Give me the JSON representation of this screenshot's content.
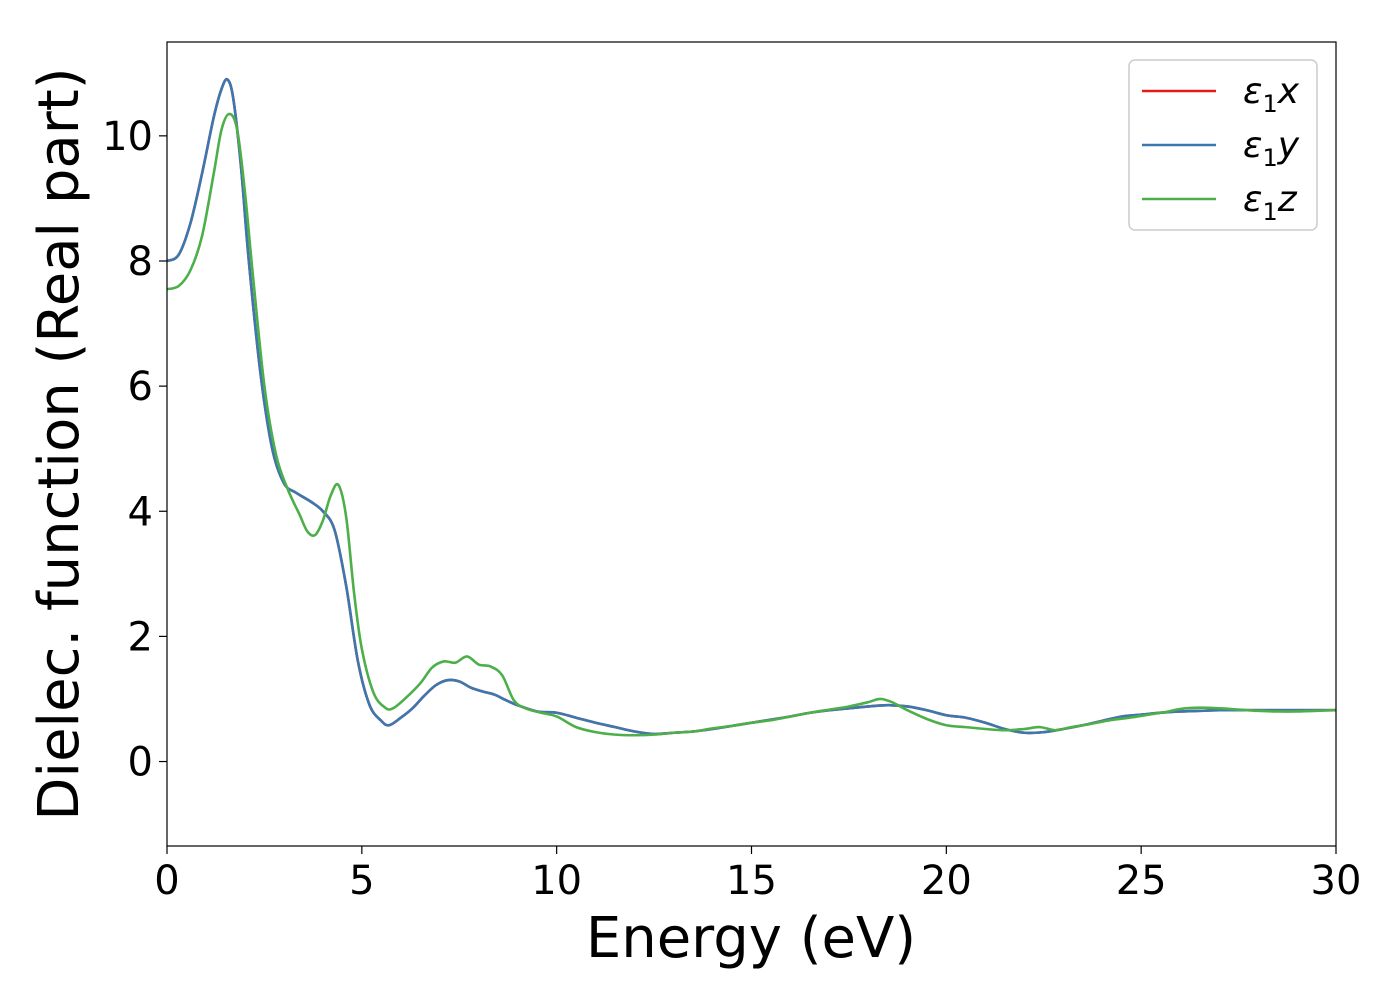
{
  "chart_data": {
    "type": "line",
    "xlabel": "Energy (eV)",
    "ylabel": "Dielec. function (Real part)",
    "xlim": [
      0,
      30
    ],
    "ylim": [
      -1.35,
      11.5
    ],
    "xticks": [
      "0",
      "5",
      "10",
      "15",
      "20",
      "25",
      "30"
    ],
    "xtick_values": [
      0,
      5,
      10,
      15,
      20,
      25,
      30
    ],
    "yticks": [
      "0",
      "2",
      "4",
      "6",
      "8",
      "10"
    ],
    "ytick_values": [
      0,
      2,
      4,
      6,
      8,
      10
    ],
    "grid": false,
    "legend_position": "top-right",
    "series": [
      {
        "name": "ε1x",
        "sym": "ε",
        "sub": "1",
        "var": "x",
        "color": "#e41a1c",
        "x": [
          0,
          0.3,
          0.6,
          0.9,
          1.2,
          1.4,
          1.55,
          1.7,
          1.9,
          2.1,
          2.4,
          2.7,
          3.0,
          3.3,
          3.7,
          4.0,
          4.3,
          4.6,
          4.9,
          5.2,
          5.5,
          5.7,
          6.0,
          6.3,
          6.6,
          6.9,
          7.2,
          7.5,
          7.8,
          8.1,
          8.4,
          8.7,
          9.0,
          9.5,
          10.0,
          10.5,
          11.0,
          11.5,
          12.0,
          12.5,
          13.0,
          13.5,
          14.0,
          14.5,
          15.0,
          15.5,
          16.0,
          16.5,
          17.0,
          17.5,
          18.0,
          18.5,
          19.0,
          19.5,
          20.0,
          20.5,
          21.0,
          21.5,
          22.0,
          22.5,
          23.0,
          23.5,
          24.0,
          24.5,
          25.0,
          25.5,
          26.0,
          26.5,
          27.0,
          27.5,
          28.0,
          28.5,
          29.0,
          29.5,
          30.0
        ],
        "y": [
          8.0,
          8.1,
          8.6,
          9.4,
          10.3,
          10.75,
          10.9,
          10.6,
          9.5,
          8.0,
          6.2,
          5.0,
          4.45,
          4.3,
          4.15,
          4.0,
          3.7,
          2.8,
          1.6,
          0.9,
          0.65,
          0.58,
          0.7,
          0.85,
          1.05,
          1.22,
          1.3,
          1.28,
          1.18,
          1.12,
          1.07,
          0.98,
          0.9,
          0.8,
          0.78,
          0.7,
          0.62,
          0.55,
          0.48,
          0.44,
          0.46,
          0.48,
          0.52,
          0.57,
          0.62,
          0.67,
          0.72,
          0.78,
          0.82,
          0.85,
          0.88,
          0.9,
          0.88,
          0.82,
          0.74,
          0.7,
          0.62,
          0.52,
          0.46,
          0.47,
          0.52,
          0.58,
          0.65,
          0.72,
          0.75,
          0.78,
          0.8,
          0.81,
          0.82,
          0.82,
          0.82,
          0.82,
          0.82,
          0.82,
          0.82
        ]
      },
      {
        "name": "ε1y",
        "sym": "ε",
        "sub": "1",
        "var": "y",
        "color": "#3b78b0",
        "x": [
          0,
          0.3,
          0.6,
          0.9,
          1.2,
          1.4,
          1.55,
          1.7,
          1.9,
          2.1,
          2.4,
          2.7,
          3.0,
          3.3,
          3.7,
          4.0,
          4.3,
          4.6,
          4.9,
          5.2,
          5.5,
          5.7,
          6.0,
          6.3,
          6.6,
          6.9,
          7.2,
          7.5,
          7.8,
          8.1,
          8.4,
          8.7,
          9.0,
          9.5,
          10.0,
          10.5,
          11.0,
          11.5,
          12.0,
          12.5,
          13.0,
          13.5,
          14.0,
          14.5,
          15.0,
          15.5,
          16.0,
          16.5,
          17.0,
          17.5,
          18.0,
          18.5,
          19.0,
          19.5,
          20.0,
          20.5,
          21.0,
          21.5,
          22.0,
          22.5,
          23.0,
          23.5,
          24.0,
          24.5,
          25.0,
          25.5,
          26.0,
          26.5,
          27.0,
          27.5,
          28.0,
          28.5,
          29.0,
          29.5,
          30.0
        ],
        "y": [
          8.0,
          8.1,
          8.6,
          9.4,
          10.3,
          10.75,
          10.9,
          10.6,
          9.5,
          8.0,
          6.2,
          5.0,
          4.45,
          4.3,
          4.15,
          4.0,
          3.7,
          2.8,
          1.6,
          0.9,
          0.65,
          0.58,
          0.7,
          0.85,
          1.05,
          1.22,
          1.3,
          1.28,
          1.18,
          1.12,
          1.07,
          0.98,
          0.9,
          0.8,
          0.78,
          0.7,
          0.62,
          0.55,
          0.48,
          0.44,
          0.46,
          0.48,
          0.52,
          0.57,
          0.62,
          0.67,
          0.72,
          0.78,
          0.82,
          0.85,
          0.88,
          0.9,
          0.88,
          0.82,
          0.74,
          0.7,
          0.62,
          0.52,
          0.46,
          0.47,
          0.52,
          0.58,
          0.65,
          0.72,
          0.75,
          0.78,
          0.8,
          0.81,
          0.82,
          0.82,
          0.82,
          0.82,
          0.82,
          0.82,
          0.82
        ]
      },
      {
        "name": "ε1z",
        "sym": "ε",
        "sub": "1",
        "var": "z",
        "color": "#4daf4a",
        "x": [
          0,
          0.3,
          0.6,
          0.9,
          1.2,
          1.4,
          1.6,
          1.8,
          2.0,
          2.2,
          2.5,
          2.8,
          3.1,
          3.4,
          3.6,
          3.8,
          4.0,
          4.2,
          4.4,
          4.6,
          4.8,
          5.0,
          5.3,
          5.6,
          5.8,
          6.1,
          6.5,
          6.8,
          7.1,
          7.4,
          7.7,
          8.0,
          8.3,
          8.6,
          8.9,
          9.2,
          9.6,
          10.0,
          10.5,
          11.0,
          11.5,
          12.0,
          12.5,
          13.0,
          13.5,
          14.0,
          14.5,
          15.0,
          15.5,
          16.0,
          16.5,
          17.0,
          17.5,
          18.0,
          18.3,
          18.6,
          19.0,
          19.5,
          20.0,
          20.5,
          21.0,
          21.5,
          22.0,
          22.4,
          22.8,
          23.2,
          23.7,
          24.2,
          24.7,
          25.2,
          25.7,
          26.0,
          26.5,
          27.0,
          27.5,
          28.0,
          28.5,
          29.0,
          29.5,
          30.0
        ],
        "y": [
          7.55,
          7.6,
          7.85,
          8.4,
          9.4,
          10.1,
          10.35,
          10.1,
          9.1,
          7.8,
          6.0,
          4.9,
          4.35,
          3.95,
          3.68,
          3.62,
          3.85,
          4.25,
          4.42,
          3.9,
          2.7,
          1.8,
          1.1,
          0.86,
          0.85,
          1.0,
          1.25,
          1.5,
          1.6,
          1.58,
          1.68,
          1.55,
          1.52,
          1.38,
          0.98,
          0.85,
          0.78,
          0.72,
          0.55,
          0.47,
          0.43,
          0.42,
          0.43,
          0.46,
          0.48,
          0.53,
          0.57,
          0.62,
          0.66,
          0.72,
          0.78,
          0.83,
          0.88,
          0.95,
          1.0,
          0.95,
          0.82,
          0.68,
          0.58,
          0.55,
          0.52,
          0.5,
          0.52,
          0.55,
          0.5,
          0.55,
          0.6,
          0.66,
          0.7,
          0.75,
          0.8,
          0.84,
          0.86,
          0.85,
          0.83,
          0.81,
          0.8,
          0.8,
          0.81,
          0.82
        ]
      }
    ]
  }
}
